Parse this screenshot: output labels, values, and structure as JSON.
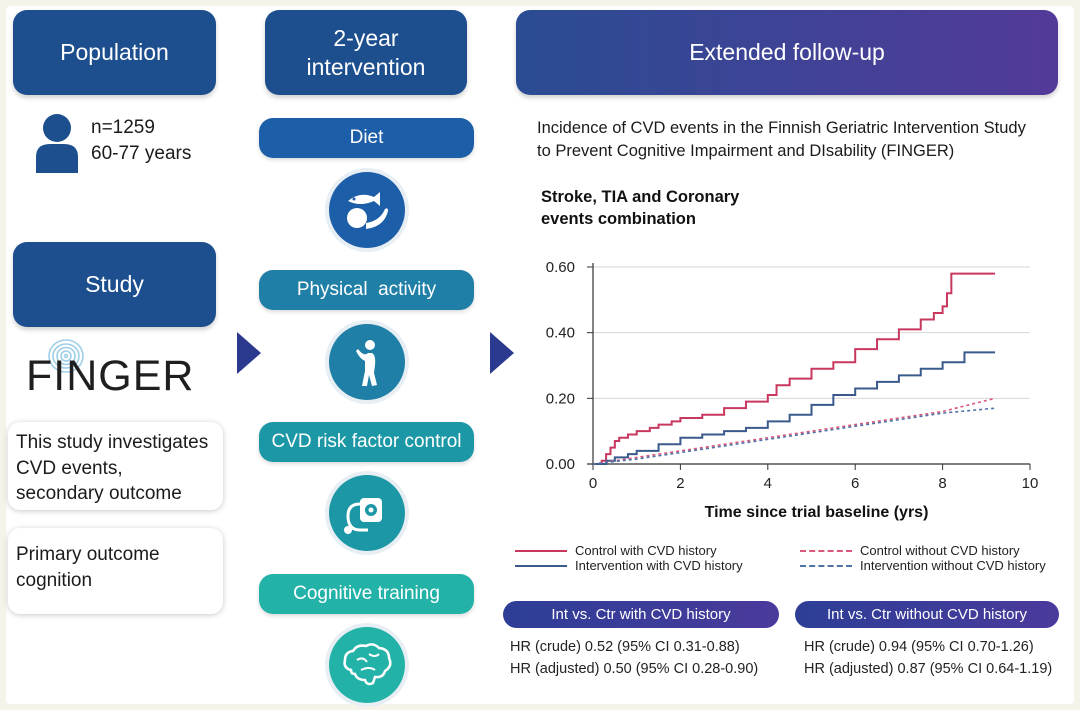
{
  "population": {
    "title": "Population",
    "n": "n=1259",
    "age": "60-77 years"
  },
  "study": {
    "title": "Study",
    "logo": "FINGER",
    "investigates": "This study investigates CVD events, secondary outcome",
    "primary": "Primary outcome cognition"
  },
  "intervention": {
    "title": "2-year intervention",
    "items": [
      {
        "label": "Diet",
        "icon": "diet-icon",
        "color": "#1d5ea8"
      },
      {
        "label": "Physical  activity",
        "icon": "exercise-icon",
        "color": "#1f7fa6"
      },
      {
        "label": "CVD risk factor control",
        "icon": "blood-pressure-icon",
        "color": "#1c97a6"
      },
      {
        "label": "Cognitive training",
        "icon": "brain-icon",
        "color": "#23b2a8"
      }
    ]
  },
  "followup": {
    "title": "Extended follow-up",
    "description": "Incidence of CVD events in the Finnish Geriatric Intervention Study to Prevent Cognitive Impairment and DIsability (FINGER)"
  },
  "chart_data": {
    "type": "line",
    "title": "Stroke, TIA and Coronary events combination",
    "xlabel": "Time since trial baseline (yrs)",
    "ylabel": "",
    "xlim": [
      0,
      10
    ],
    "ylim": [
      0,
      0.6
    ],
    "xticks": [
      "0",
      "2",
      "4",
      "6",
      "8",
      "10"
    ],
    "yticks": [
      "0.00",
      "0.20",
      "0.40",
      "0.60"
    ],
    "series": [
      {
        "name": "Control with CVD history",
        "color": "#c8385e",
        "style": "solid",
        "x": [
          0,
          0.2,
          0.3,
          0.4,
          0.5,
          0.6,
          0.8,
          1.0,
          1.3,
          1.5,
          1.8,
          2.0,
          2.5,
          3.0,
          3.5,
          4.0,
          4.2,
          4.5,
          5.0,
          5.5,
          6.0,
          6.5,
          7.0,
          7.5,
          7.8,
          8.0,
          8.1,
          8.2,
          9.2
        ],
        "y": [
          0,
          0.01,
          0.03,
          0.05,
          0.07,
          0.08,
          0.09,
          0.1,
          0.11,
          0.12,
          0.13,
          0.14,
          0.15,
          0.17,
          0.19,
          0.21,
          0.24,
          0.26,
          0.29,
          0.31,
          0.35,
          0.38,
          0.41,
          0.44,
          0.46,
          0.48,
          0.52,
          0.58,
          0.58
        ]
      },
      {
        "name": "Intervention with CVD history",
        "color": "#3a5a8c",
        "style": "solid",
        "x": [
          0,
          0.3,
          0.5,
          0.8,
          1.0,
          1.5,
          2.0,
          2.5,
          3.0,
          3.5,
          4.0,
          4.5,
          5.0,
          5.5,
          6.0,
          6.5,
          7.0,
          7.5,
          8.0,
          8.5,
          9.2
        ],
        "y": [
          0,
          0.01,
          0.02,
          0.03,
          0.04,
          0.06,
          0.08,
          0.09,
          0.1,
          0.11,
          0.13,
          0.15,
          0.18,
          0.21,
          0.23,
          0.25,
          0.27,
          0.29,
          0.31,
          0.34,
          0.34
        ]
      },
      {
        "name": "Control without CVD history",
        "color": "#d9577a",
        "style": "dashed",
        "x": [
          0,
          1,
          2,
          3,
          4,
          5,
          6,
          7,
          8,
          9.2
        ],
        "y": [
          0,
          0.02,
          0.04,
          0.06,
          0.08,
          0.1,
          0.12,
          0.14,
          0.16,
          0.2
        ]
      },
      {
        "name": "Intervention without CVD history",
        "color": "#4f73a8",
        "style": "dashed",
        "x": [
          0,
          1,
          2,
          3,
          4,
          5,
          6,
          7,
          8,
          9.2
        ],
        "y": [
          0,
          0.015,
          0.035,
          0.055,
          0.075,
          0.095,
          0.115,
          0.135,
          0.155,
          0.17
        ]
      }
    ]
  },
  "hr": {
    "with": {
      "title": "Int vs. Ctr with CVD history",
      "crude": "HR (crude) 0.52 (95% CI 0.31-0.88)",
      "adjusted": "HR (adjusted) 0.50 (95% CI 0.28-0.90)"
    },
    "without": {
      "title": "Int vs. Ctr without CVD history",
      "crude": "HR (crude) 0.94 (95% CI 0.70-1.26)",
      "adjusted": "HR (adjusted) 0.87 (95% CI 0.64-1.19)"
    }
  }
}
